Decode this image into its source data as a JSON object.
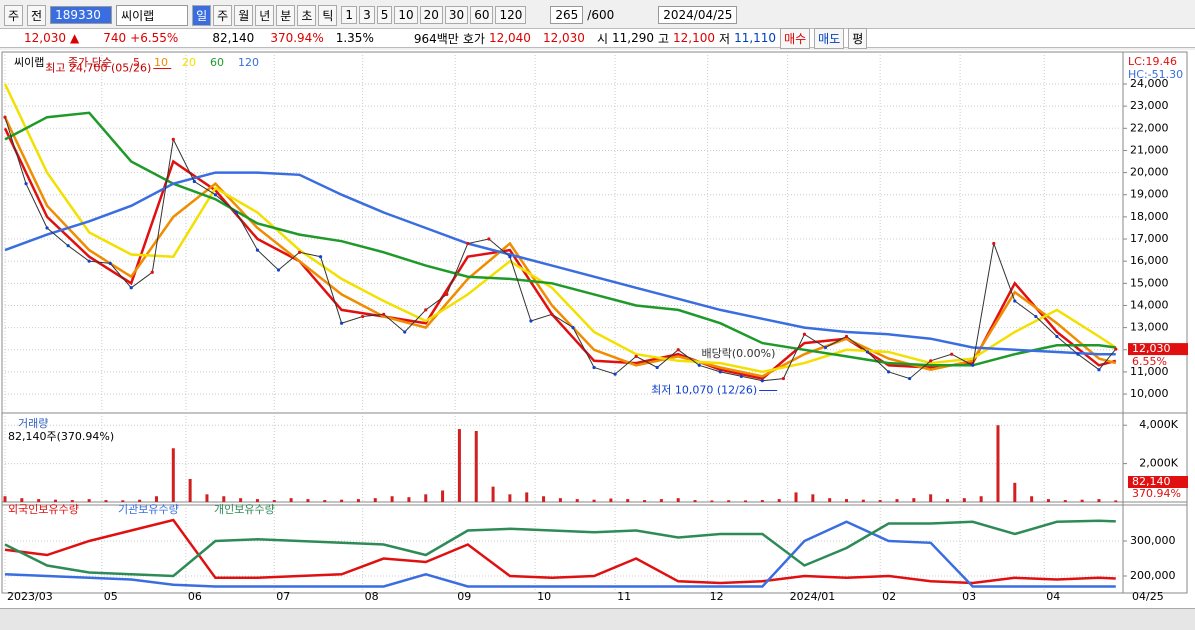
{
  "toolbar": {
    "market": "주",
    "kind": "전",
    "code": "189330",
    "name": "씨이랩",
    "periods": [
      "일",
      "주",
      "월",
      "년",
      "분",
      "초",
      "틱"
    ],
    "intervals": [
      "1",
      "3",
      "5",
      "10",
      "20",
      "30",
      "60",
      "120"
    ],
    "count": "265",
    "max": "/600",
    "date": "2024/04/25"
  },
  "quote": {
    "price": "12,030",
    "arrow": "▲",
    "change": "740",
    "change_pct": "+6.55%",
    "volume": "82,140",
    "volume_ratio": "370.94%",
    "turnover": "1.35%",
    "amount": "964백만",
    "ask_label": "호가",
    "ask": "12,040",
    "bid": "12,030",
    "open_label": "시",
    "open": "11,290",
    "high_label": "고",
    "high": "12,100",
    "low_label": "저",
    "low": "11,110",
    "buy": "매수",
    "sell": "매도",
    "avg": "평"
  },
  "chart_data": [
    {
      "type": "line",
      "title": "씨이랩",
      "legend_prefix": "종가 단순",
      "indicators": [
        "LC:19.46",
        "HC:-51.30"
      ],
      "xlim": [
        0,
        265
      ],
      "ylim": [
        9280,
        25310
      ],
      "xticks": [
        {
          "value": 0,
          "label": "2023/03"
        },
        {
          "value": 23,
          "label": "05"
        },
        {
          "value": 43,
          "label": "06"
        },
        {
          "value": 64,
          "label": "07"
        },
        {
          "value": 85,
          "label": "08"
        },
        {
          "value": 107,
          "label": "09"
        },
        {
          "value": 126,
          "label": "10"
        },
        {
          "value": 145,
          "label": "11"
        },
        {
          "value": 167,
          "label": "12"
        },
        {
          "value": 186,
          "label": "2024/01"
        },
        {
          "value": 208,
          "label": "02"
        },
        {
          "value": 227,
          "label": "03"
        },
        {
          "value": 247,
          "label": "04"
        }
      ],
      "x_end_label": "04/25",
      "yticks": [
        {
          "value": 10000,
          "label": "10,000"
        },
        {
          "value": 11000,
          "label": "11,000"
        },
        {
          "value": 12000,
          "label": "12,000"
        },
        {
          "value": 13000,
          "label": "13,000"
        },
        {
          "value": 14000,
          "label": "14,000"
        },
        {
          "value": 15000,
          "label": "15,000"
        },
        {
          "value": 16000,
          "label": "16,000"
        },
        {
          "value": 17000,
          "label": "17,000"
        },
        {
          "value": 18000,
          "label": "18,000"
        },
        {
          "value": 19000,
          "label": "19,000"
        },
        {
          "value": 20000,
          "label": "20,000"
        },
        {
          "value": 21000,
          "label": "21,000"
        },
        {
          "value": 22000,
          "label": "22,000"
        },
        {
          "value": 23000,
          "label": "23,000"
        },
        {
          "value": 24000,
          "label": "24,000"
        }
      ],
      "close": {
        "color": "#333333",
        "x": [
          0,
          5,
          10,
          15,
          20,
          25,
          30,
          35,
          40,
          45,
          50,
          55,
          60,
          65,
          70,
          75,
          80,
          85,
          90,
          95,
          100,
          105,
          110,
          115,
          120,
          125,
          130,
          135,
          140,
          145,
          150,
          155,
          160,
          165,
          170,
          175,
          180,
          185,
          190,
          195,
          200,
          205,
          210,
          215,
          220,
          225,
          230,
          235,
          240,
          245,
          250,
          255,
          260,
          264
        ],
        "values": [
          22500,
          19500,
          17500,
          16700,
          16000,
          15900,
          14800,
          15500,
          21500,
          19600,
          19000,
          18200,
          16500,
          15600,
          16400,
          16200,
          13200,
          13500,
          13600,
          12800,
          13800,
          14500,
          16800,
          17000,
          16200,
          13300,
          13600,
          13000,
          11200,
          10900,
          11700,
          11200,
          12000,
          11300,
          11000,
          10800,
          10600,
          10700,
          12700,
          12100,
          12600,
          11900,
          11000,
          10700,
          11500,
          11800,
          11300,
          16800,
          14200,
          13500,
          12600,
          11800,
          11100,
          12030
        ]
      },
      "ma_x": [
        0,
        10,
        20,
        30,
        40,
        50,
        60,
        70,
        80,
        90,
        100,
        110,
        120,
        130,
        140,
        150,
        160,
        170,
        180,
        190,
        200,
        210,
        220,
        230,
        240,
        250,
        260,
        264
      ],
      "series": [
        {
          "name": "5",
          "color": "#e01010",
          "values": [
            22000,
            18000,
            16200,
            15000,
            20500,
            19200,
            17000,
            16000,
            13800,
            13500,
            13200,
            16200,
            16500,
            13600,
            11500,
            11400,
            11800,
            11100,
            10700,
            12300,
            12500,
            11300,
            11200,
            11400,
            15000,
            12800,
            11300,
            11500
          ]
        },
        {
          "name": "10",
          "color": "#f08c00",
          "values": [
            22500,
            18500,
            16500,
            15300,
            18000,
            19500,
            17500,
            16000,
            14500,
            13500,
            13000,
            15200,
            16800,
            14000,
            12000,
            11300,
            11700,
            11200,
            10800,
            11800,
            12500,
            11600,
            11100,
            11500,
            14600,
            13200,
            11600,
            11400
          ]
        },
        {
          "name": "20",
          "color": "#f2e000",
          "values": [
            24000,
            20000,
            17300,
            16300,
            16200,
            19300,
            18200,
            16500,
            15200,
            14200,
            13300,
            14500,
            16000,
            14800,
            12800,
            11800,
            11500,
            11400,
            11000,
            11400,
            12000,
            11900,
            11400,
            11600,
            12800,
            13800,
            12600,
            12100
          ]
        },
        {
          "name": "60",
          "color": "#1f9a2a",
          "values": [
            21500,
            22500,
            22700,
            20500,
            19500,
            18800,
            17700,
            17200,
            16900,
            16400,
            15800,
            15300,
            15200,
            15000,
            14500,
            14000,
            13800,
            13200,
            12300,
            12000,
            11700,
            11400,
            11300,
            11300,
            11800,
            12200,
            12200,
            12100
          ]
        },
        {
          "name": "120",
          "color": "#3a6ee0",
          "values": [
            16500,
            17200,
            17800,
            18500,
            19500,
            20000,
            20000,
            19900,
            19000,
            18200,
            17500,
            16800,
            16300,
            15800,
            15300,
            14800,
            14300,
            13800,
            13400,
            13000,
            12800,
            12700,
            12500,
            12100,
            12000,
            11900,
            11800,
            11800
          ]
        }
      ],
      "annotations": [
        {
          "text": "최고 24,700 (05/26)",
          "x": 40,
          "value": 24700
        },
        {
          "text": "최저 10,070 (12/26)",
          "x": 184,
          "value": 10070
        }
      ],
      "dividend": {
        "text": "배당락(0.00%)",
        "x": 176
      },
      "last": {
        "value": 12030,
        "label": "12,030",
        "change": "6.55%"
      }
    },
    {
      "type": "bar",
      "title": "거래량",
      "subtitle": "82,140주(370.94%)",
      "color": "#d02020",
      "xlim": [
        0,
        265
      ],
      "ylim": [
        0,
        4480
      ],
      "yticks": [
        {
          "value": 2000,
          "label": "2,000K"
        },
        {
          "value": 4000,
          "label": "4,000K"
        }
      ],
      "x": [
        0,
        4,
        8,
        12,
        16,
        20,
        24,
        28,
        32,
        36,
        40,
        44,
        48,
        52,
        56,
        60,
        64,
        68,
        72,
        76,
        80,
        84,
        88,
        92,
        96,
        100,
        104,
        108,
        112,
        116,
        120,
        124,
        128,
        132,
        136,
        140,
        144,
        148,
        152,
        156,
        160,
        164,
        168,
        172,
        176,
        180,
        184,
        188,
        192,
        196,
        200,
        204,
        208,
        212,
        216,
        220,
        224,
        228,
        232,
        236,
        240,
        244,
        248,
        252,
        256,
        260,
        264
      ],
      "values": [
        300,
        200,
        150,
        120,
        100,
        150,
        100,
        90,
        120,
        300,
        2800,
        1200,
        400,
        300,
        200,
        150,
        100,
        200,
        150,
        100,
        120,
        150,
        200,
        300,
        250,
        400,
        600,
        3800,
        3700,
        800,
        400,
        500,
        300,
        200,
        150,
        120,
        180,
        150,
        100,
        150,
        200,
        100,
        80,
        90,
        80,
        100,
        150,
        500,
        400,
        200,
        150,
        120,
        100,
        150,
        200,
        400,
        150,
        200,
        300,
        4000,
        1000,
        300,
        150,
        100,
        120,
        150,
        82.14
      ],
      "last": {
        "value": 82.14,
        "label": "82,140",
        "ratio": "370.94%"
      }
    },
    {
      "type": "line",
      "xlim": [
        0,
        265
      ],
      "ylim": [
        160000,
        402860
      ],
      "yticks": [
        {
          "value": 200000,
          "label": "200,000"
        },
        {
          "value": 300000,
          "label": "300,000"
        }
      ],
      "x": [
        0,
        10,
        20,
        30,
        40,
        50,
        60,
        70,
        80,
        90,
        100,
        110,
        120,
        130,
        140,
        150,
        160,
        170,
        180,
        190,
        200,
        210,
        220,
        230,
        240,
        250,
        260,
        264
      ],
      "series": [
        {
          "name": "외국인보유수량",
          "color": "#e01010",
          "values": [
            275000,
            260000,
            300000,
            330000,
            360000,
            195000,
            195000,
            200000,
            205000,
            250000,
            240000,
            290000,
            200000,
            195000,
            200000,
            250000,
            185000,
            180000,
            185000,
            200000,
            195000,
            200000,
            185000,
            180000,
            195000,
            190000,
            195000,
            193000
          ]
        },
        {
          "name": "기관보유수량",
          "color": "#3a6ee0",
          "values": [
            205000,
            200000,
            195000,
            190000,
            175000,
            170000,
            170000,
            170000,
            170000,
            170000,
            205000,
            170000,
            170000,
            170000,
            170000,
            170000,
            170000,
            170000,
            170000,
            300000,
            355000,
            300000,
            295000,
            170000,
            170000,
            170000,
            170000,
            170000
          ]
        },
        {
          "name": "개인보유수량",
          "color": "#2e8b57",
          "values": [
            290000,
            230000,
            210000,
            205000,
            200000,
            300000,
            305000,
            300000,
            295000,
            290000,
            260000,
            330000,
            335000,
            330000,
            325000,
            330000,
            310000,
            320000,
            320000,
            230000,
            280000,
            350000,
            350000,
            355000,
            320000,
            355000,
            358000,
            356000
          ]
        }
      ]
    }
  ]
}
